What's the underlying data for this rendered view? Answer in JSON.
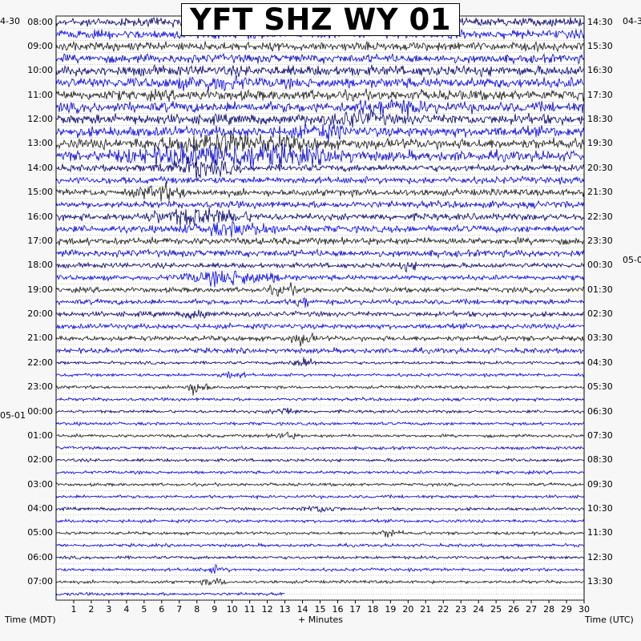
{
  "chart_data": {
    "type": "line",
    "title": "YFT SHZ WY 01",
    "xlabel": "+ Minutes",
    "ylabel_left": "Time (MDT)",
    "ylabel_right": "Time (UTC)",
    "xlim": [
      0,
      30
    ],
    "x_ticks": [
      "1",
      "2",
      "3",
      "4",
      "5",
      "6",
      "7",
      "8",
      "9",
      "10",
      "11",
      "12",
      "13",
      "14",
      "15",
      "16",
      "17",
      "18",
      "19",
      "20",
      "21",
      "22",
      "23",
      "24",
      "25",
      "26",
      "27",
      "28",
      "29",
      "30"
    ],
    "start_date_left": "4-30",
    "start_date_right": "04-3",
    "left_date_change": "05-01",
    "right_date_change": "05-0",
    "left_labels": [
      "08:00",
      "09:00",
      "10:00",
      "11:00",
      "12:00",
      "13:00",
      "14:00",
      "15:00",
      "16:00",
      "17:00",
      "18:00",
      "19:00",
      "20:00",
      "21:00",
      "22:00",
      "23:00",
      "00:00",
      "01:00",
      "02:00",
      "03:00",
      "04:00",
      "05:00",
      "06:00",
      "07:00"
    ],
    "right_labels": [
      "14:30",
      "15:30",
      "16:30",
      "17:30",
      "18:30",
      "19:30",
      "20:30",
      "21:30",
      "22:30",
      "23:30",
      "00:30",
      "01:30",
      "02:30",
      "03:30",
      "04:30",
      "05:30",
      "06:30",
      "07:30",
      "08:30",
      "09:30",
      "10:30",
      "11:30",
      "12:30",
      "13:30"
    ],
    "trace_count": 48,
    "last_trace_end_minute": 13,
    "trace_colors": [
      "#00006b",
      "#0000f0",
      "#1a1a1a",
      "#0000cc"
    ],
    "grid": true
  }
}
